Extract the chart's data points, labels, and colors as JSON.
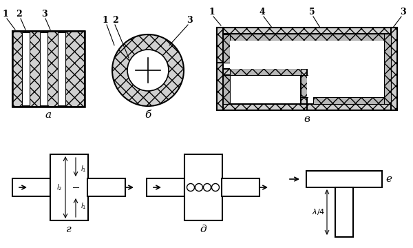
{
  "bg_color": "#ffffff",
  "line_color": "#000000",
  "label_a": "а",
  "label_b": "б",
  "label_c": "в",
  "label_d": "г",
  "label_e": "д",
  "label_f": "е"
}
